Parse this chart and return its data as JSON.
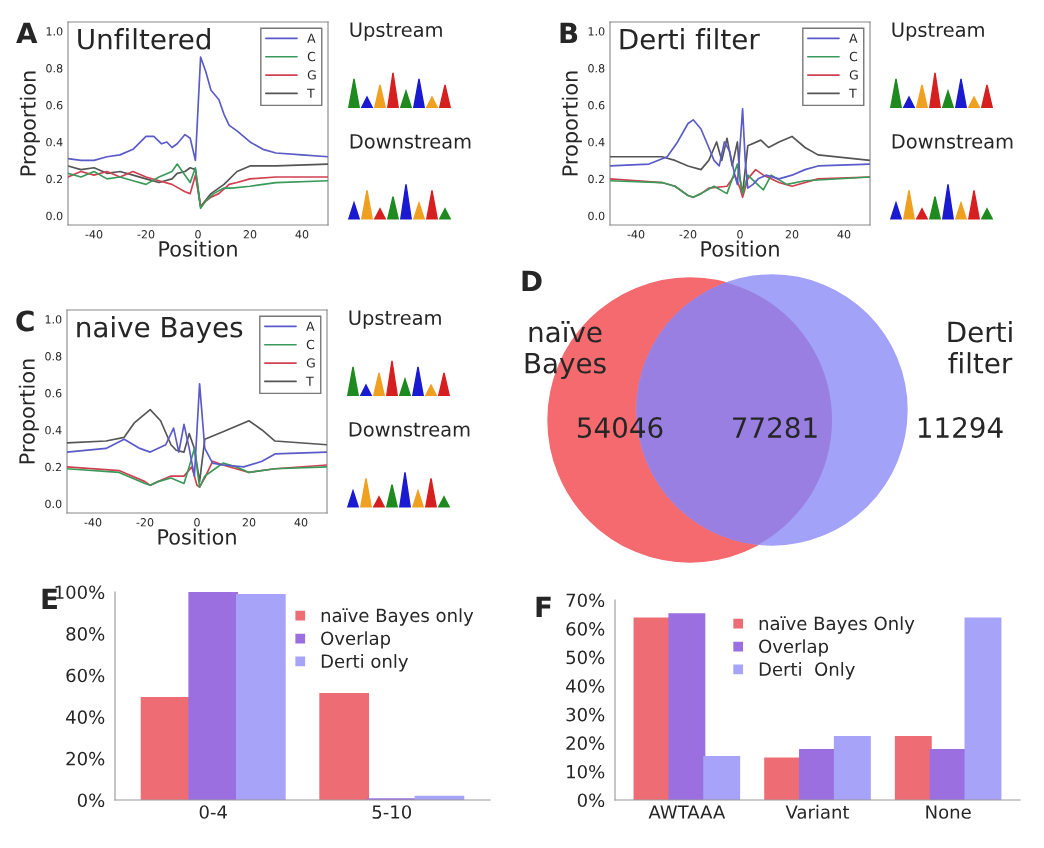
{
  "chart_data": [
    {
      "type": "line",
      "title": "Unfiltered",
      "xlabel": "Position",
      "ylabel": "Proportion",
      "xlim": [
        -50,
        50
      ],
      "xticks": [
        -40,
        -20,
        0,
        20,
        40
      ],
      "ylim": [
        -0.05,
        1.05
      ],
      "yticks": [
        {
          "value": 0,
          "label": "0.0"
        },
        0.2,
        0.4,
        0.6,
        0.8,
        {
          "value": 1,
          "label": "1.0"
        }
      ],
      "legend": "top right",
      "grid": false,
      "annotations": [
        "A",
        "Upstream",
        "Downstream"
      ],
      "series": [
        {
          "name": "A",
          "color": "#5a5ac8",
          "x": [
            -50,
            -45,
            -40,
            -35,
            -30,
            -25,
            -20,
            -17,
            -14,
            -12,
            -10,
            -8,
            -5,
            -3,
            -1,
            1,
            3,
            5,
            8,
            10,
            12,
            15,
            20,
            25,
            30,
            40,
            50
          ],
          "values": [
            0.31,
            0.3,
            0.3,
            0.32,
            0.33,
            0.36,
            0.43,
            0.43,
            0.39,
            0.4,
            0.37,
            0.39,
            0.44,
            0.42,
            0.3,
            0.86,
            0.78,
            0.68,
            0.63,
            0.55,
            0.49,
            0.46,
            0.4,
            0.36,
            0.34,
            0.33,
            0.32
          ]
        },
        {
          "name": "C",
          "color": "#3a9a5a",
          "x": [
            -50,
            -45,
            -40,
            -35,
            -30,
            -25,
            -20,
            -15,
            -10,
            -8,
            -5,
            -3,
            -1,
            1,
            3,
            6,
            10,
            13,
            20,
            30,
            50
          ],
          "values": [
            0.23,
            0.21,
            0.24,
            0.2,
            0.21,
            0.19,
            0.17,
            0.21,
            0.24,
            0.28,
            0.22,
            0.18,
            0.26,
            0.04,
            0.08,
            0.12,
            0.15,
            0.15,
            0.16,
            0.18,
            0.19
          ]
        },
        {
          "name": "G",
          "color": "#d04050",
          "x": [
            -50,
            -45,
            -40,
            -35,
            -30,
            -25,
            -20,
            -15,
            -10,
            -5,
            -3,
            -1,
            1,
            3,
            5,
            8,
            12,
            15,
            20,
            30,
            50
          ],
          "values": [
            0.21,
            0.24,
            0.22,
            0.24,
            0.21,
            0.24,
            0.21,
            0.19,
            0.17,
            0.13,
            0.12,
            0.22,
            0.05,
            0.08,
            0.1,
            0.12,
            0.17,
            0.18,
            0.2,
            0.21,
            0.21
          ]
        },
        {
          "name": "T",
          "color": "#555555",
          "x": [
            -50,
            -45,
            -40,
            -35,
            -30,
            -25,
            -20,
            -15,
            -10,
            -8,
            -5,
            -3,
            -1,
            1,
            5,
            10,
            15,
            20,
            30,
            50
          ],
          "values": [
            0.27,
            0.25,
            0.26,
            0.23,
            0.24,
            0.22,
            0.2,
            0.18,
            0.2,
            0.23,
            0.24,
            0.26,
            0.25,
            0.05,
            0.12,
            0.17,
            0.24,
            0.27,
            0.27,
            0.28
          ]
        }
      ]
    },
    {
      "type": "line",
      "title": "Derti filter",
      "xlabel": "Position",
      "ylabel": "Proportion",
      "xlim": [
        -50,
        50
      ],
      "xticks": [
        -40,
        -20,
        0,
        20,
        40
      ],
      "ylim": [
        -0.05,
        1.05
      ],
      "yticks": [
        {
          "value": 0,
          "label": "0.0"
        },
        0.2,
        0.4,
        0.6,
        0.8,
        {
          "value": 1,
          "label": "1.0"
        }
      ],
      "legend": "top right",
      "grid": false,
      "annotations": [
        "B",
        "Upstream",
        "Downstream"
      ],
      "series": [
        {
          "name": "A",
          "color": "#5a5ac8",
          "x": [
            -50,
            -35,
            -28,
            -24,
            -20,
            -18,
            -15,
            -12,
            -10,
            -8,
            -6,
            -4,
            -2,
            -1,
            1,
            2,
            3,
            5,
            7,
            10,
            15,
            20,
            25,
            30,
            50
          ],
          "values": [
            0.27,
            0.28,
            0.32,
            0.4,
            0.5,
            0.52,
            0.47,
            0.37,
            0.3,
            0.27,
            0.4,
            0.35,
            0.22,
            0.17,
            0.58,
            0.3,
            0.15,
            0.17,
            0.2,
            0.22,
            0.2,
            0.22,
            0.25,
            0.27,
            0.28
          ]
        },
        {
          "name": "C",
          "color": "#3a9a5a",
          "x": [
            -50,
            -30,
            -25,
            -20,
            -18,
            -15,
            -10,
            -5,
            -3,
            -1,
            1,
            3,
            6,
            9,
            12,
            18,
            25,
            50
          ],
          "values": [
            0.19,
            0.18,
            0.16,
            0.11,
            0.1,
            0.12,
            0.16,
            0.12,
            0.2,
            0.28,
            0.12,
            0.22,
            0.18,
            0.14,
            0.22,
            0.17,
            0.19,
            0.21
          ]
        },
        {
          "name": "G",
          "color": "#d04050",
          "x": [
            -50,
            -30,
            -25,
            -20,
            -18,
            -15,
            -12,
            -5,
            -2,
            0,
            1,
            3,
            6,
            9,
            12,
            15,
            20,
            30,
            50
          ],
          "values": [
            0.2,
            0.18,
            0.16,
            0.11,
            0.1,
            0.12,
            0.15,
            0.16,
            0.22,
            0.15,
            0.1,
            0.2,
            0.25,
            0.22,
            0.2,
            0.18,
            0.16,
            0.2,
            0.21
          ]
        },
        {
          "name": "T",
          "color": "#555555",
          "x": [
            -50,
            -30,
            -25,
            -20,
            -15,
            -12,
            -9,
            -7,
            -5,
            -3,
            -1,
            0,
            1,
            3,
            8,
            11,
            15,
            20,
            25,
            30,
            50
          ],
          "values": [
            0.32,
            0.32,
            0.3,
            0.27,
            0.25,
            0.3,
            0.4,
            0.3,
            0.42,
            0.27,
            0.4,
            0.2,
            0.12,
            0.38,
            0.41,
            0.37,
            0.4,
            0.43,
            0.37,
            0.33,
            0.3
          ]
        }
      ]
    },
    {
      "type": "line",
      "title": "naive Bayes",
      "xlabel": "Position",
      "ylabel": "Proportion",
      "xlim": [
        -50,
        50
      ],
      "xticks": [
        -40,
        -20,
        0,
        20,
        40
      ],
      "ylim": [
        -0.05,
        1.05
      ],
      "yticks": [
        {
          "value": 0,
          "label": "0.0"
        },
        0.2,
        0.4,
        0.6,
        0.8,
        {
          "value": 1,
          "label": "1.0"
        }
      ],
      "legend": "top right",
      "grid": false,
      "annotations": [
        "C",
        "Upstream",
        "Downstream"
      ],
      "series": [
        {
          "name": "A",
          "color": "#5a5ac8",
          "x": [
            -50,
            -35,
            -28,
            -22,
            -18,
            -12,
            -9,
            -7,
            -5,
            -3,
            -1,
            1,
            3,
            6,
            10,
            18,
            25,
            30,
            50
          ],
          "values": [
            0.28,
            0.3,
            0.35,
            0.3,
            0.28,
            0.32,
            0.41,
            0.28,
            0.43,
            0.3,
            0.15,
            0.65,
            0.3,
            0.22,
            0.21,
            0.2,
            0.23,
            0.27,
            0.28
          ]
        },
        {
          "name": "C",
          "color": "#3a9a5a",
          "x": [
            -50,
            -30,
            -20,
            -18,
            -15,
            -10,
            -5,
            -3,
            -1,
            1,
            3,
            6,
            10,
            15,
            20,
            30,
            50
          ],
          "values": [
            0.19,
            0.17,
            0.11,
            0.1,
            0.12,
            0.14,
            0.11,
            0.2,
            0.3,
            0.09,
            0.15,
            0.18,
            0.22,
            0.2,
            0.17,
            0.19,
            0.2
          ]
        },
        {
          "name": "G",
          "color": "#d04050",
          "x": [
            -50,
            -30,
            -20,
            -18,
            -15,
            -10,
            -5,
            -2,
            0,
            1,
            3,
            6,
            10,
            15,
            20,
            30,
            50
          ],
          "values": [
            0.2,
            0.18,
            0.12,
            0.1,
            0.12,
            0.15,
            0.15,
            0.2,
            0.1,
            0.09,
            0.14,
            0.23,
            0.21,
            0.19,
            0.17,
            0.19,
            0.21
          ]
        },
        {
          "name": "T",
          "color": "#555555",
          "x": [
            -50,
            -35,
            -28,
            -24,
            -18,
            -14,
            -10,
            -8,
            -5,
            -3,
            -1,
            1,
            3,
            10,
            15,
            20,
            25,
            30,
            50
          ],
          "values": [
            0.33,
            0.34,
            0.36,
            0.44,
            0.51,
            0.45,
            0.32,
            0.29,
            0.28,
            0.38,
            0.3,
            0.12,
            0.35,
            0.39,
            0.42,
            0.45,
            0.4,
            0.34,
            0.32
          ]
        }
      ]
    },
    {
      "type": "other",
      "categories": [
        "naïve\nBayes",
        null,
        "Derti\nfilter"
      ],
      "values": [
        54046,
        77281,
        11294
      ],
      "data_labels": true,
      "colors": [
        "#f46a6f",
        "#9a7fe3",
        "#a2a2f8"
      ],
      "annotations": [
        "D"
      ]
    },
    {
      "type": "bar",
      "categories": [
        "0-4",
        "5-10"
      ],
      "ylim": [
        0,
        100
      ],
      "yticks": [
        {
          "value": 0,
          "label": "0%"
        },
        {
          "value": 20,
          "label": "20%"
        },
        {
          "value": 40,
          "label": "40%"
        },
        {
          "value": 60,
          "label": "60%"
        },
        {
          "value": 80,
          "label": "80%"
        },
        {
          "value": 100,
          "label": "100%"
        }
      ],
      "legend": "top right",
      "grid": false,
      "annotations": [
        "E"
      ],
      "series": [
        {
          "name": "naïve Bayes only",
          "color": "#ee6d74",
          "values": [
            49,
            51
          ]
        },
        {
          "name": "Overlap",
          "color": "#9b6fe0",
          "values": [
            99.5,
            0.3
          ]
        },
        {
          "name": "Derti only",
          "color": "#a6a3f8",
          "values": [
            98.5,
            1.5
          ]
        }
      ]
    },
    {
      "type": "bar",
      "categories": [
        "AWTAAA",
        "Variant",
        "None"
      ],
      "ylim": [
        0,
        70
      ],
      "yticks": [
        {
          "value": 0,
          "label": "0%"
        },
        {
          "value": 10,
          "label": "10%"
        },
        {
          "value": 20,
          "label": "20%"
        },
        {
          "value": 30,
          "label": "30%"
        },
        {
          "value": 40,
          "label": "40%"
        },
        {
          "value": 50,
          "label": "50%"
        },
        {
          "value": 60,
          "label": "60%"
        },
        {
          "value": 70,
          "label": "70%"
        }
      ],
      "legend": "top",
      "grid": false,
      "annotations": [
        "F"
      ],
      "series": [
        {
          "name": "naïve Bayes Only",
          "color": "#ee6d74",
          "values": [
            63.5,
            14.5,
            22
          ]
        },
        {
          "name": "Overlap",
          "color": "#9b6fe0",
          "values": [
            65,
            17.5,
            17.5
          ]
        },
        {
          "name": "Derti  Only",
          "color": "#a6a3f8",
          "values": [
            15,
            22,
            63.5
          ]
        }
      ]
    }
  ]
}
